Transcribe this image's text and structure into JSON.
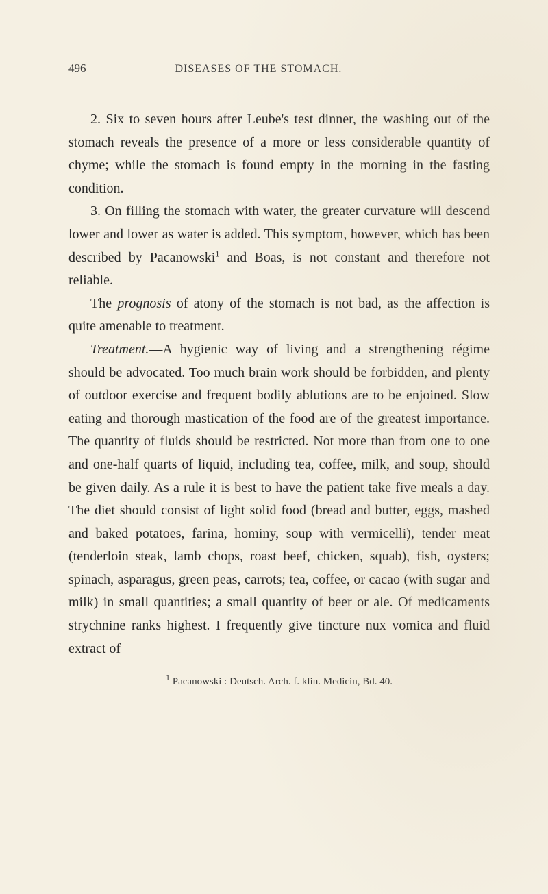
{
  "header": {
    "page_number": "496",
    "chapter_title": "DISEASES OF THE STOMACH."
  },
  "paragraphs": {
    "p1": "2. Six to seven hours after Leube's test dinner, the washing out of the stomach reveals the presence of a more or less considerable quantity of chyme; while the stomach is found empty in the morning in the fasting condition.",
    "p2_a": "3. On filling the stomach with water, the greater curvature will descend lower and lower as water is added. This symptom, however, which has been de­scribed by Pacanowski",
    "p2_sup": "1",
    "p2_b": " and Boas, is not constant and therefore not reliable.",
    "p3_a": "The ",
    "p3_italic": "prognosis",
    "p3_b": " of atony of the stomach is not bad, as the affection is quite amenable to treatment.",
    "p4_italic": "Treatment.",
    "p4_b": "—A hygienic way of living and a strengthening régime should be advocated. Too much brain work should be forbidden, and plenty of outdoor exercise and frequent bodily ablutions are to be enjoined. Slow eating and thorough mastication of the food are of the greatest importance. The quan­tity of fluids should be restricted. Not more than from one to one and one-half quarts of liquid, includ­ing tea, coffee, milk, and soup, should be given daily. As a rule it is best to have the patient take five meals a day. The diet should consist of light solid food (bread and butter, eggs, mashed and baked potatoes, farina, hominy, soup with vermicelli), tender meat (tenderloin steak, lamb chops, roast beef, chicken, squab), fish, oysters; spinach, asparagus, green peas, carrots; tea, coffee, or cacao (with sugar and milk) in small quantities; a small quantity of beer or ale. Of medicaments strychnine ranks highest. I fre­quently give tincture nux vomica and fluid extract of"
  },
  "footnote": {
    "marker": "1",
    "text": " Pacanowski : Deutsch. Arch. f. klin. Medicin, Bd. 40."
  },
  "colors": {
    "background": "#f5f0e3",
    "text": "#2a2a2a",
    "header_text": "#3a3a3a"
  }
}
